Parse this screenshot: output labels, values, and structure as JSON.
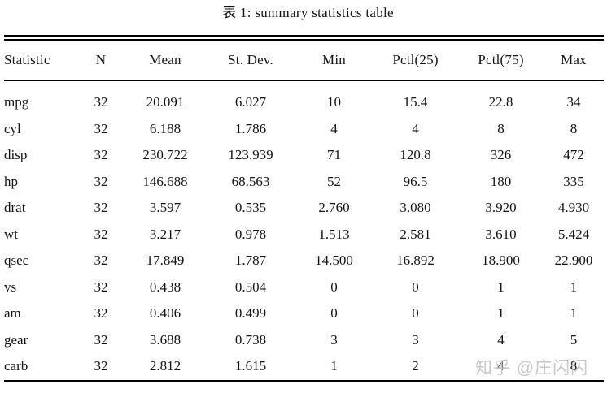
{
  "page": {
    "background": "#ffffff",
    "text_color": "#131313",
    "rule_color": "#000000"
  },
  "title": "表 1: summary statistics table",
  "watermark": {
    "text": "知乎 @庄闪闪",
    "color": "#c5c5c5"
  },
  "chart_data": {
    "type": "table",
    "title": "表 1: summary statistics table",
    "columns": [
      "Statistic",
      "N",
      "Mean",
      "St. Dev.",
      "Min",
      "Pctl(25)",
      "Pctl(75)",
      "Max"
    ],
    "rows": [
      [
        "mpg",
        "32",
        "20.091",
        "6.027",
        "10",
        "15.4",
        "22.8",
        "34"
      ],
      [
        "cyl",
        "32",
        "6.188",
        "1.786",
        "4",
        "4",
        "8",
        "8"
      ],
      [
        "disp",
        "32",
        "230.722",
        "123.939",
        "71",
        "120.8",
        "326",
        "472"
      ],
      [
        "hp",
        "32",
        "146.688",
        "68.563",
        "52",
        "96.5",
        "180",
        "335"
      ],
      [
        "drat",
        "32",
        "3.597",
        "0.535",
        "2.760",
        "3.080",
        "3.920",
        "4.930"
      ],
      [
        "wt",
        "32",
        "3.217",
        "0.978",
        "1.513",
        "2.581",
        "3.610",
        "5.424"
      ],
      [
        "qsec",
        "32",
        "17.849",
        "1.787",
        "14.500",
        "16.892",
        "18.900",
        "22.900"
      ],
      [
        "vs",
        "32",
        "0.438",
        "0.504",
        "0",
        "0",
        "1",
        "1"
      ],
      [
        "am",
        "32",
        "0.406",
        "0.499",
        "0",
        "0",
        "1",
        "1"
      ],
      [
        "gear",
        "32",
        "3.688",
        "0.738",
        "3",
        "3",
        "4",
        "5"
      ],
      [
        "carb",
        "32",
        "2.812",
        "1.615",
        "1",
        "2",
        "4",
        "8"
      ]
    ]
  }
}
